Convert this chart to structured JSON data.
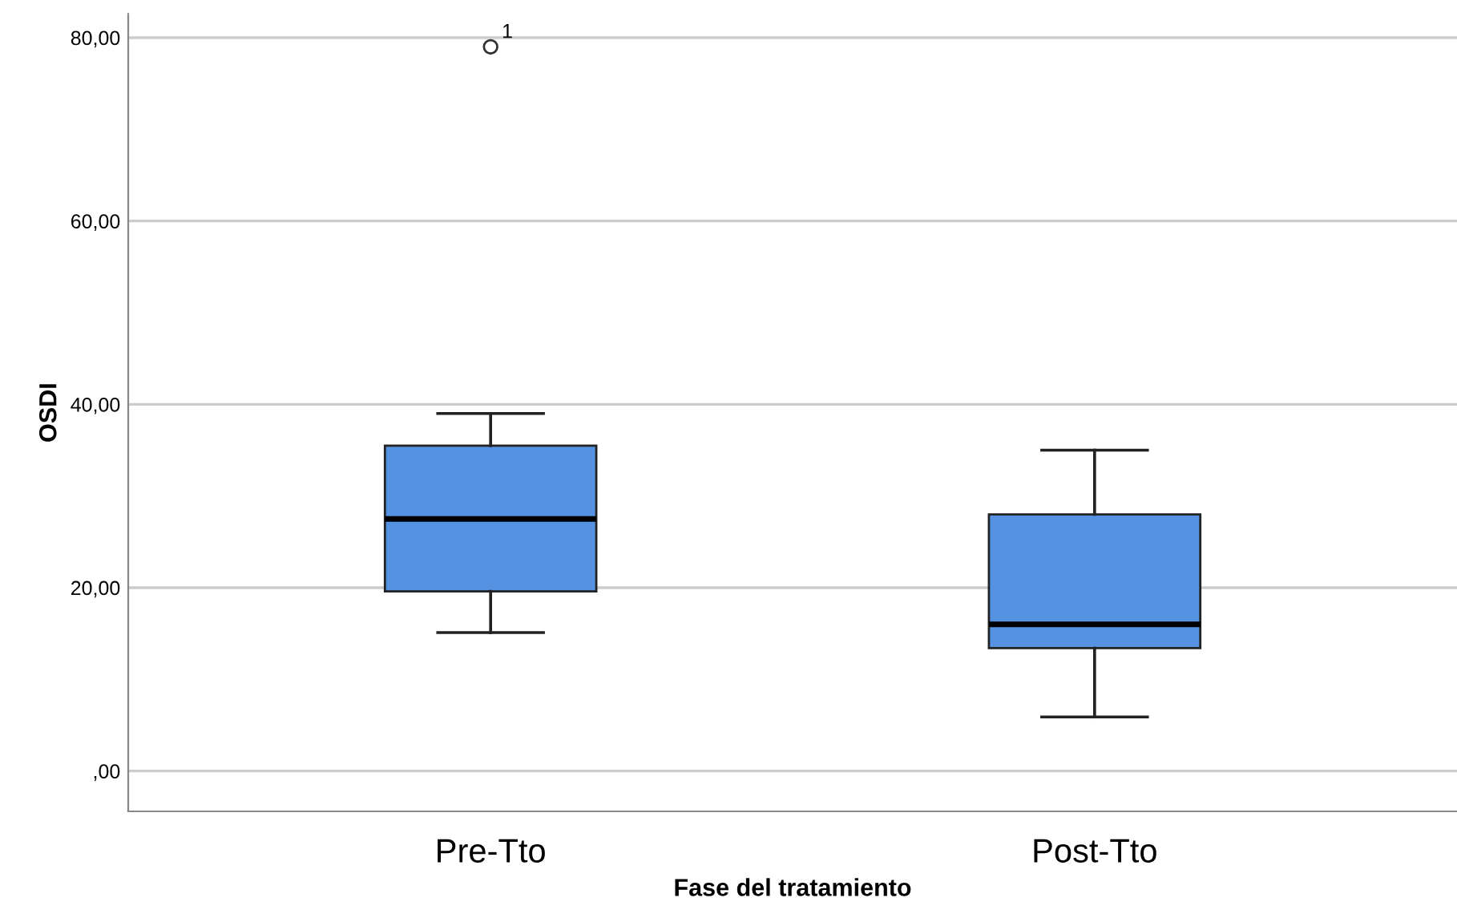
{
  "chart_data": {
    "type": "box",
    "xlabel": "Fase del tratamiento",
    "ylabel": "OSDI",
    "categories": [
      "Pre-Tto",
      "Post-Tto"
    ],
    "series": [
      {
        "color": "#5592e2",
        "boxes": [
          {
            "low": 15.1,
            "q1": 19.6,
            "median": 27.5,
            "q3": 35.5,
            "high": 39.0,
            "outliers": [
              79.0
            ]
          },
          {
            "low": 5.9,
            "q1": 13.4,
            "median": 16.0,
            "q3": 28.0,
            "high": 35.0
          }
        ]
      }
    ],
    "ylim": [
      -4.4,
      82.6
    ],
    "yticks": [
      {
        "value": 0,
        "label": ",00"
      },
      {
        "value": 20,
        "label": "20,00"
      },
      {
        "value": 40,
        "label": "40,00"
      },
      {
        "value": 60,
        "label": "60,00"
      },
      {
        "value": 80,
        "label": "80,00"
      }
    ],
    "grid": "y",
    "annotations": [
      "1"
    ]
  }
}
